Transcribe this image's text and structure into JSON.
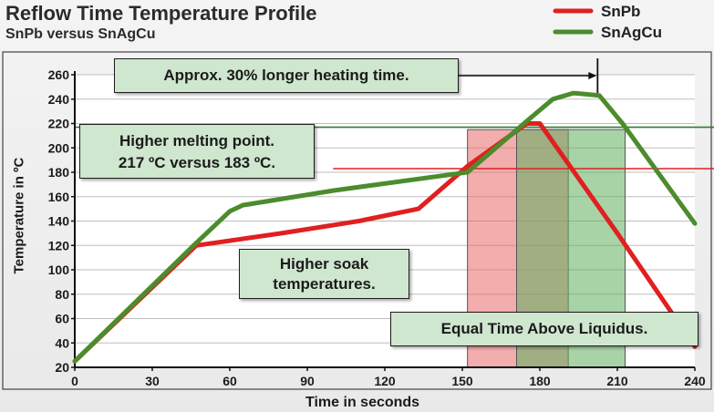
{
  "chart_data": {
    "type": "line",
    "title": "Reflow Time Temperature Profile",
    "subtitle": "SnPb versus SnAgCu",
    "xlabel": "Time in seconds",
    "ylabel": "Temperature in ºC",
    "xlim": [
      0,
      240
    ],
    "ylim": [
      20,
      260
    ],
    "x_ticks": [
      0,
      30,
      60,
      90,
      120,
      150,
      180,
      210,
      240
    ],
    "y_ticks": [
      20,
      40,
      60,
      80,
      100,
      120,
      140,
      160,
      180,
      200,
      220,
      240,
      260
    ],
    "grid": "horizontal",
    "legend_position": "top-right",
    "series": [
      {
        "name": "SnPb",
        "color": "#e02020",
        "points": [
          [
            0,
            25
          ],
          [
            47,
            120
          ],
          [
            80,
            130
          ],
          [
            110,
            140
          ],
          [
            133,
            150
          ],
          [
            152,
            185
          ],
          [
            175,
            220
          ],
          [
            180,
            220
          ],
          [
            185,
            205
          ],
          [
            210,
            130
          ],
          [
            240,
            37
          ]
        ]
      },
      {
        "name": "SnAgCu",
        "color": "#4c8c2c",
        "points": [
          [
            0,
            25
          ],
          [
            47,
            122
          ],
          [
            60,
            148
          ],
          [
            65,
            153
          ],
          [
            100,
            165
          ],
          [
            152,
            180
          ],
          [
            175,
            222
          ],
          [
            185,
            240
          ],
          [
            193,
            245
          ],
          [
            203,
            243
          ],
          [
            212,
            220
          ],
          [
            240,
            138
          ]
        ]
      }
    ],
    "reference_lines": [
      {
        "value": 217,
        "x_range": [
          0,
          240
        ],
        "color": "#2f7d2f"
      },
      {
        "value": 183,
        "x_range": [
          100,
          240
        ],
        "color": "#e02020"
      }
    ],
    "bands": [
      {
        "x_range": [
          152,
          191
        ],
        "color": "#e86a6a"
      },
      {
        "x_range": [
          171,
          213
        ],
        "color": "#5fae5f"
      }
    ],
    "annotations": [
      {
        "text": "Approx. 30% longer heating time."
      },
      {
        "text": "Higher melting point.\n217 ºC versus 183 ºC."
      },
      {
        "text": "Higher soak\ntemperatures."
      },
      {
        "text": "Equal Time Above Liquidus."
      }
    ]
  },
  "annotations": {
    "heating": "Approx. 30% longer heating time.",
    "melting_line1": "Higher melting point.",
    "melting_line2": "217 ºC versus 183 ºC.",
    "soak_line1": "Higher soak",
    "soak_line2": "temperatures.",
    "liquidus": "Equal Time Above Liquidus."
  }
}
